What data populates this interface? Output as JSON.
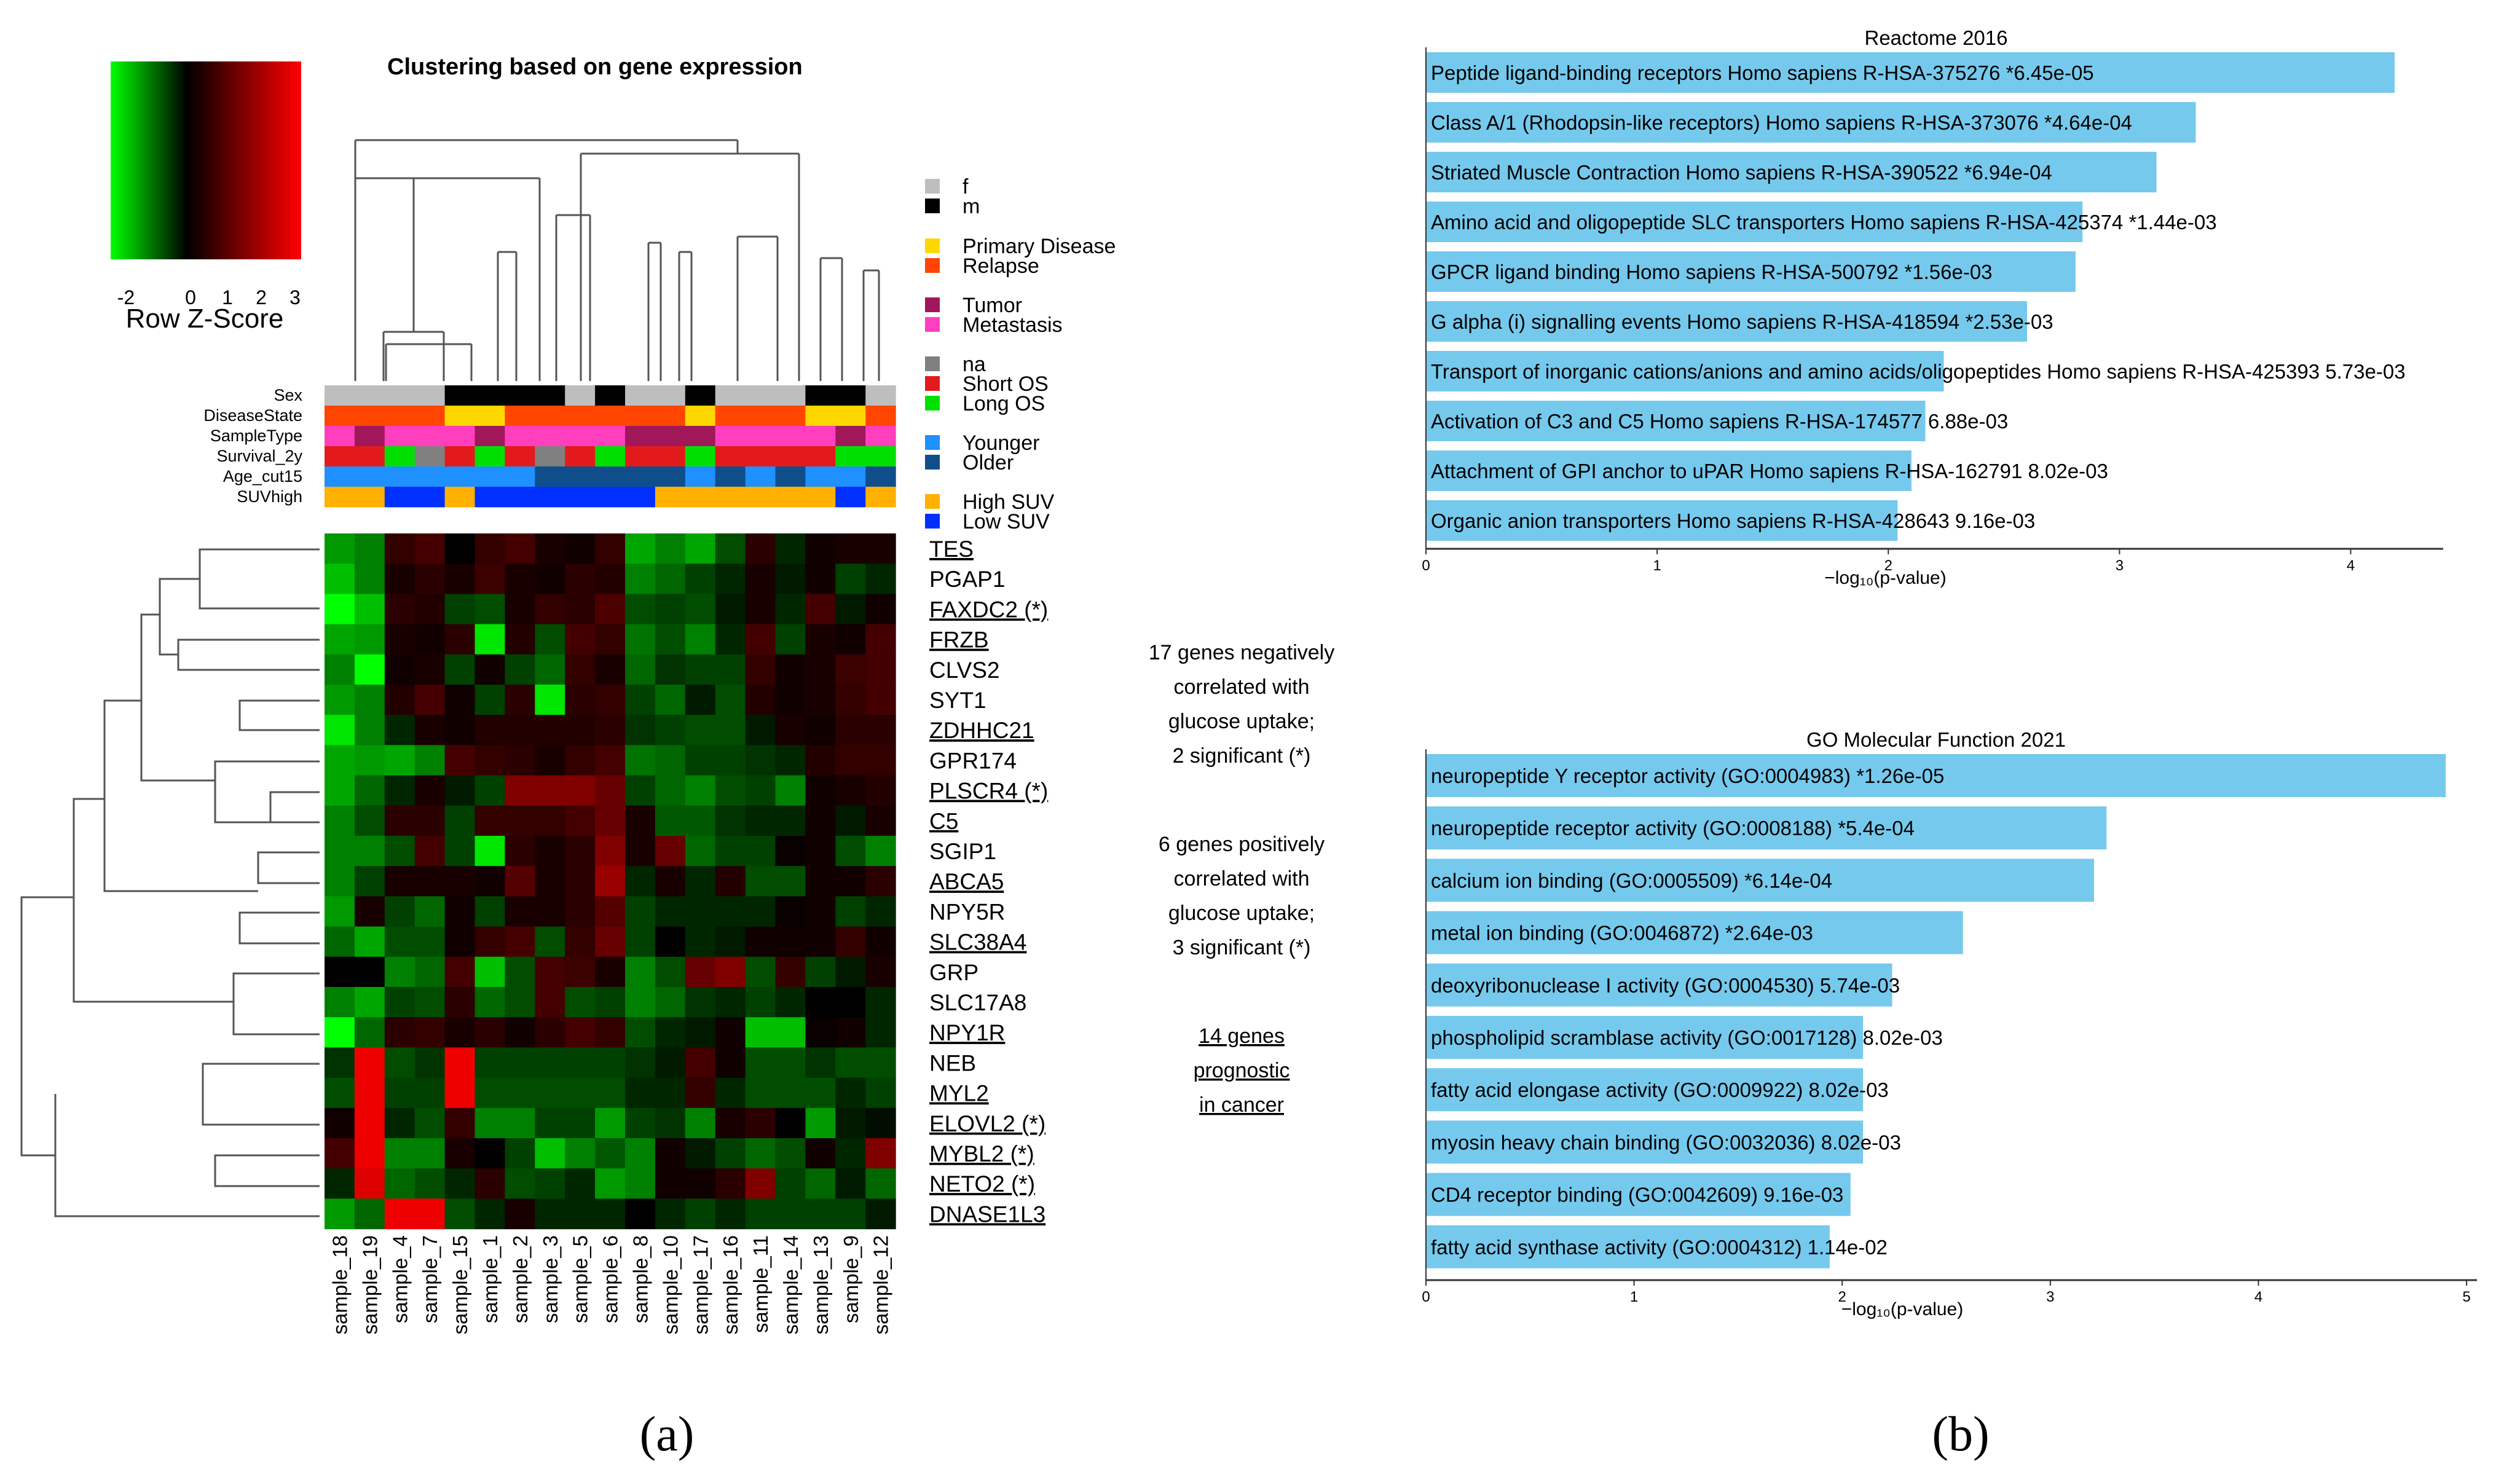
{
  "panel_labels": [
    "(a)",
    "(b)"
  ],
  "colors": {
    "heat_low": "#00ff00",
    "heat_mid": "#000000",
    "heat_high": "#ff0000",
    "sex_f": "#bebebe",
    "sex_m": "#000000",
    "primary": "#ffd700",
    "relapse": "#ff4500",
    "tumor": "#a0175a",
    "metastasis": "#ff3fbe",
    "na": "#808080",
    "short_os": "#e31a1c",
    "long_os": "#00e000",
    "younger": "#1e90ff",
    "older": "#104e8b",
    "high_suv": "#ffb000",
    "low_suv": "#0030ff",
    "neg_text": "#00b050",
    "pos_text": "#ff1010",
    "bar": "#75c9ed",
    "dend": "#555555"
  },
  "heatmap": {
    "title": "Clustering based on gene expression",
    "key_title": "Row Z-Score",
    "key_ticks": [
      "-2",
      "0",
      "1",
      "2",
      "3"
    ],
    "samples": [
      "sample_18",
      "sample_19",
      "sample_4",
      "sample_7",
      "sample_15",
      "sample_1",
      "sample_2",
      "sample_3",
      "sample_5",
      "sample_6",
      "sample_8",
      "sample_10",
      "sample_17",
      "sample_16",
      "sample_11",
      "sample_14",
      "sample_13",
      "sample_9",
      "sample_12"
    ],
    "track_names": [
      "Sex",
      "DiseaseState",
      "SampleType",
      "Survival_2y",
      "Age_cut15",
      "SUVhigh"
    ],
    "tracks": [
      [
        "sex_f",
        "sex_f",
        "sex_f",
        "sex_f",
        "sex_m",
        "sex_m",
        "sex_m",
        "sex_m",
        "sex_f",
        "sex_m",
        "sex_f",
        "sex_f",
        "sex_m",
        "sex_f",
        "sex_f",
        "sex_f",
        "sex_m",
        "sex_m",
        "sex_f"
      ],
      [
        "relapse",
        "relapse",
        "relapse",
        "relapse",
        "primary",
        "primary",
        "relapse",
        "relapse",
        "relapse",
        "relapse",
        "relapse",
        "relapse",
        "primary",
        "relapse",
        "relapse",
        "relapse",
        "primary",
        "primary",
        "relapse"
      ],
      [
        "metastasis",
        "tumor",
        "metastasis",
        "metastasis",
        "metastasis",
        "tumor",
        "metastasis",
        "metastasis",
        "metastasis",
        "metastasis",
        "tumor",
        "tumor",
        "tumor",
        "metastasis",
        "metastasis",
        "metastasis",
        "metastasis",
        "tumor",
        "metastasis"
      ],
      [
        "short_os",
        "short_os",
        "long_os",
        "na",
        "short_os",
        "long_os",
        "short_os",
        "na",
        "short_os",
        "long_os",
        "short_os",
        "short_os",
        "long_os",
        "short_os",
        "short_os",
        "short_os",
        "short_os",
        "long_os",
        "long_os"
      ],
      [
        "younger",
        "younger",
        "younger",
        "younger",
        "younger",
        "younger",
        "younger",
        "older",
        "older",
        "older",
        "older",
        "older",
        "younger",
        "older",
        "younger",
        "older",
        "younger",
        "younger",
        "older"
      ],
      [
        "high_suv",
        "high_suv",
        "low_suv",
        "low_suv",
        "high_suv",
        "low_suv",
        "low_suv",
        "low_suv",
        "low_suv",
        "low_suv",
        "low_suv",
        "high_suv",
        "high_suv",
        "high_suv",
        "high_suv",
        "high_suv",
        "high_suv",
        "low_suv",
        "high_suv"
      ]
    ],
    "legend": [
      {
        "color": "sex_f",
        "label": "f"
      },
      {
        "color": "sex_m",
        "label": "m"
      },
      {
        "color": "primary",
        "label": "Primary Disease"
      },
      {
        "color": "relapse",
        "label": "Relapse"
      },
      {
        "color": "tumor",
        "label": "Tumor"
      },
      {
        "color": "metastasis",
        "label": "Metastasis"
      },
      {
        "color": "na",
        "label": "na"
      },
      {
        "color": "short_os",
        "label": "Short OS"
      },
      {
        "color": "long_os",
        "label": "Long OS"
      },
      {
        "color": "younger",
        "label": "Younger"
      },
      {
        "color": "older",
        "label": "Older"
      },
      {
        "color": "high_suv",
        "label": "High SUV"
      },
      {
        "color": "low_suv",
        "label": "Low SUV"
      }
    ],
    "genes": [
      {
        "name": "TES",
        "sign": "neg",
        "underline": true
      },
      {
        "name": "PGAP1",
        "sign": "neg",
        "underline": false
      },
      {
        "name": "FAXDC2 (*)",
        "sign": "neg",
        "underline": true
      },
      {
        "name": "FRZB",
        "sign": "neg",
        "underline": true
      },
      {
        "name": "CLVS2",
        "sign": "neg",
        "underline": false
      },
      {
        "name": "SYT1",
        "sign": "neg",
        "underline": false
      },
      {
        "name": "ZDHHC21",
        "sign": "neg",
        "underline": true
      },
      {
        "name": "GPR174",
        "sign": "neg",
        "underline": false
      },
      {
        "name": "PLSCR4 (*)",
        "sign": "neg",
        "underline": true
      },
      {
        "name": "C5",
        "sign": "neg",
        "underline": true
      },
      {
        "name": "SGIP1",
        "sign": "neg",
        "underline": false
      },
      {
        "name": "ABCA5",
        "sign": "neg",
        "underline": true
      },
      {
        "name": "NPY5R",
        "sign": "neg",
        "underline": false
      },
      {
        "name": "SLC38A4",
        "sign": "neg",
        "underline": true
      },
      {
        "name": "GRP",
        "sign": "pos",
        "underline": false
      },
      {
        "name": "SLC17A8",
        "sign": "neg",
        "underline": false
      },
      {
        "name": "NPY1R",
        "sign": "neg",
        "underline": true
      },
      {
        "name": "NEB",
        "sign": "pos",
        "underline": false
      },
      {
        "name": "MYL2",
        "sign": "pos",
        "underline": true
      },
      {
        "name": "ELOVL2 (*)",
        "sign": "pos",
        "underline": true
      },
      {
        "name": "MYBL2 (*)",
        "sign": "pos",
        "underline": true
      },
      {
        "name": "NETO2 (*)",
        "sign": "pos",
        "underline": true
      },
      {
        "name": "DNASE1L3",
        "sign": "neg",
        "underline": true
      }
    ],
    "annotation_neg": [
      "17 genes negatively",
      "correlated with",
      "glucose uptake;",
      "2 significant (*)"
    ],
    "annotation_pos": [
      "6 genes positively",
      "correlated with",
      "glucose uptake;",
      "3 significant (*)"
    ],
    "annotation_prog": [
      "14 genes",
      "prognostic",
      "in cancer"
    ]
  },
  "chart_data": [
    {
      "type": "heatmap",
      "title": "Clustering based on gene expression",
      "legend_title": "Row Z-Score",
      "value_range": [
        -2,
        3
      ],
      "columns": [
        "sample_18",
        "sample_19",
        "sample_4",
        "sample_7",
        "sample_15",
        "sample_1",
        "sample_2",
        "sample_3",
        "sample_5",
        "sample_6",
        "sample_8",
        "sample_10",
        "sample_17",
        "sample_16",
        "sample_11",
        "sample_14",
        "sample_13",
        "sample_9",
        "sample_12"
      ],
      "rows": [
        "TES",
        "PGAP1",
        "FAXDC2",
        "FRZB",
        "CLVS2",
        "SYT1",
        "ZDHHC21",
        "GPR174",
        "PLSCR4",
        "C5",
        "SGIP1",
        "ABCA5",
        "NPY5R",
        "SLC38A4",
        "GRP",
        "SLC17A8",
        "NPY1R",
        "NEB",
        "MYL2",
        "ELOVL2",
        "MYBL2",
        "NETO2",
        "DNASE1L3"
      ],
      "values": [
        [
          -1.2,
          -1.0,
          0.6,
          0.8,
          0.0,
          0.6,
          0.8,
          0.3,
          0.2,
          0.6,
          -1.3,
          -1.0,
          -1.3,
          -0.6,
          0.5,
          -0.3,
          0.2,
          0.3,
          0.3
        ],
        [
          -1.5,
          -1.0,
          0.3,
          0.5,
          0.3,
          0.7,
          0.3,
          0.2,
          0.5,
          0.4,
          -1.0,
          -0.8,
          -0.5,
          -0.3,
          0.3,
          -0.2,
          0.2,
          -0.5,
          -0.3
        ],
        [
          -2.0,
          -1.5,
          0.5,
          0.4,
          -0.5,
          -0.6,
          0.3,
          0.6,
          0.5,
          0.9,
          -0.6,
          -0.5,
          -0.6,
          -0.2,
          0.3,
          -0.3,
          0.8,
          -0.2,
          0.2
        ],
        [
          -1.3,
          -1.2,
          0.3,
          0.2,
          0.5,
          -1.8,
          0.4,
          -0.6,
          0.8,
          0.6,
          -0.9,
          -0.6,
          -1.0,
          -0.3,
          0.8,
          -0.5,
          0.3,
          0.2,
          0.8
        ],
        [
          -1.0,
          -2.2,
          0.2,
          0.3,
          -0.5,
          0.2,
          -0.5,
          -0.8,
          0.6,
          0.3,
          -0.8,
          -0.4,
          -0.5,
          -0.5,
          0.6,
          0.2,
          0.3,
          0.7,
          0.8
        ],
        [
          -1.2,
          -1.0,
          0.4,
          0.8,
          0.2,
          -0.5,
          0.5,
          -1.8,
          0.5,
          0.6,
          -0.5,
          -0.8,
          -0.2,
          -0.6,
          0.4,
          0.2,
          0.3,
          0.6,
          0.8
        ],
        [
          -1.8,
          -1.0,
          -0.3,
          0.3,
          0.2,
          0.4,
          0.4,
          0.4,
          0.4,
          0.5,
          -0.4,
          -0.5,
          -0.6,
          -0.6,
          -0.2,
          0.3,
          0.2,
          0.5,
          0.5
        ],
        [
          -1.3,
          -1.2,
          -1.3,
          -1.0,
          0.8,
          0.6,
          0.5,
          0.3,
          0.6,
          0.8,
          -0.9,
          -0.8,
          -0.5,
          -0.5,
          -0.4,
          -0.3,
          0.4,
          0.6,
          0.6
        ],
        [
          -1.3,
          -0.8,
          -0.3,
          0.3,
          -0.2,
          -0.5,
          1.5,
          1.5,
          1.5,
          1.2,
          -0.5,
          -0.8,
          -1.0,
          -0.6,
          -0.5,
          -1.0,
          0.2,
          0.3,
          0.4
        ],
        [
          -1.0,
          -0.6,
          0.5,
          0.5,
          -0.5,
          0.6,
          0.6,
          0.6,
          0.8,
          1.2,
          0.3,
          -0.7,
          -0.7,
          -0.4,
          -0.3,
          -0.3,
          0.2,
          -0.2,
          0.3
        ],
        [
          -1.0,
          -1.0,
          -0.6,
          0.8,
          -0.5,
          -1.8,
          0.5,
          0.3,
          0.5,
          1.5,
          0.3,
          1.2,
          -0.8,
          -0.5,
          -0.5,
          0.1,
          0.2,
          -0.6,
          -1.0
        ],
        [
          -1.0,
          -0.5,
          0.3,
          0.3,
          0.3,
          0.2,
          1.0,
          0.3,
          0.5,
          1.8,
          -0.3,
          0.3,
          -0.3,
          0.4,
          -0.6,
          -0.6,
          0.2,
          0.2,
          0.5
        ],
        [
          -1.2,
          0.3,
          -0.5,
          -0.8,
          0.2,
          -0.5,
          0.3,
          0.3,
          0.5,
          1.0,
          -0.5,
          -0.3,
          -0.3,
          -0.3,
          -0.3,
          0.1,
          0.2,
          -0.5,
          -0.3
        ],
        [
          -0.8,
          -1.3,
          -0.6,
          -0.6,
          0.2,
          0.6,
          0.8,
          -0.6,
          0.6,
          1.2,
          -0.5,
          0.0,
          -0.3,
          -0.2,
          0.2,
          0.2,
          0.2,
          0.6,
          0.2
        ],
        [
          0.0,
          0.0,
          -1.0,
          -0.8,
          0.8,
          -1.5,
          -0.6,
          0.8,
          0.7,
          0.3,
          -1.0,
          -0.6,
          1.2,
          1.5,
          -0.6,
          0.6,
          -0.5,
          -0.2,
          0.3
        ],
        [
          -1.0,
          -1.3,
          -0.5,
          -0.6,
          0.5,
          -0.8,
          -0.6,
          0.8,
          -0.6,
          -0.5,
          -1.0,
          -0.8,
          -0.4,
          -0.3,
          -0.5,
          -0.3,
          0.0,
          0.0,
          -0.3
        ],
        [
          -2.0,
          -0.8,
          0.5,
          0.6,
          0.3,
          0.5,
          0.2,
          0.5,
          0.8,
          0.6,
          -0.6,
          -0.3,
          -0.2,
          0.2,
          -1.5,
          -1.5,
          0.1,
          0.2,
          -0.3
        ],
        [
          -0.4,
          2.8,
          -0.6,
          -0.4,
          2.8,
          -0.5,
          -0.5,
          -0.5,
          -0.5,
          -0.5,
          -0.4,
          -0.2,
          0.8,
          0.2,
          -0.6,
          -0.6,
          -0.4,
          -0.6,
          -0.6
        ],
        [
          -0.6,
          2.8,
          -0.5,
          -0.5,
          2.8,
          -0.6,
          -0.6,
          -0.6,
          -0.6,
          -0.6,
          -0.3,
          -0.3,
          0.6,
          -0.3,
          -0.6,
          -0.6,
          -0.6,
          -0.3,
          -0.5
        ],
        [
          0.2,
          2.8,
          -0.3,
          -0.6,
          0.6,
          -1.0,
          -1.0,
          -0.5,
          -0.5,
          -1.2,
          -0.5,
          -0.4,
          -1.0,
          0.3,
          0.5,
          0.0,
          -1.2,
          -0.2,
          -0.1
        ],
        [
          0.8,
          2.8,
          -1.0,
          -1.0,
          0.3,
          0.0,
          -0.5,
          -1.5,
          -1.0,
          -0.7,
          -1.0,
          0.2,
          -0.2,
          -0.5,
          -0.8,
          -0.6,
          0.2,
          -0.3,
          1.5
        ],
        [
          -0.3,
          2.6,
          -0.8,
          -0.6,
          -0.3,
          0.5,
          -0.6,
          -0.5,
          -0.3,
          -1.2,
          -1.0,
          0.2,
          0.2,
          0.5,
          1.5,
          -0.5,
          -0.8,
          -0.2,
          -0.8
        ],
        [
          -1.2,
          -0.8,
          2.8,
          2.8,
          -0.6,
          -0.3,
          0.3,
          -0.3,
          -0.3,
          -0.3,
          0.0,
          -0.3,
          -0.5,
          -0.3,
          -0.5,
          -0.5,
          -0.5,
          -0.5,
          -0.2
        ]
      ]
    },
    {
      "type": "bar",
      "orientation": "horizontal",
      "title": "Reactome 2016",
      "xlabel": "−log₁₀(p-value)",
      "xlim": [
        0,
        4.4
      ],
      "xticks": [
        0,
        1,
        2,
        3,
        4
      ],
      "categories": [
        "Peptide ligand-binding receptors Homo sapiens R-HSA-375276  *6.45e-05",
        "Class A/1 (Rhodopsin-like receptors) Homo sapiens R-HSA-373076  *4.64e-04",
        "Striated Muscle Contraction Homo sapiens R-HSA-390522  *6.94e-04",
        "Amino acid and oligopeptide SLC transporters Homo sapiens R-HSA-425374  *1.44e-03",
        "GPCR ligand binding Homo sapiens R-HSA-500792  *1.56e-03",
        "G alpha (i) signalling events Homo sapiens R-HSA-418594  *2.53e-03",
        "Transport of inorganic cations/anions and amino acids/oligopeptides Homo sapiens R-HSA-425393  5.73e-03",
        "Activation of C3 and C5 Homo sapiens R-HSA-174577  6.88e-03",
        "Attachment of GPI anchor to uPAR Homo sapiens R-HSA-162791  8.02e-03",
        "Organic anion transporters Homo sapiens R-HSA-428643  9.16e-03"
      ],
      "values": [
        4.19,
        3.33,
        3.16,
        2.84,
        2.81,
        2.6,
        2.24,
        2.16,
        2.1,
        2.04
      ]
    },
    {
      "type": "bar",
      "orientation": "horizontal",
      "title": "GO Molecular Function 2021",
      "xlabel": "−log₁₀(p-value)",
      "xlim": [
        0,
        5.05
      ],
      "xticks": [
        0,
        1,
        2,
        3,
        4,
        5
      ],
      "categories": [
        "neuropeptide Y receptor activity (GO:0004983)  *1.26e-05",
        "neuropeptide receptor activity (GO:0008188)  *5.4e-04",
        "calcium ion binding (GO:0005509)  *6.14e-04",
        "metal ion binding (GO:0046872)  *2.64e-03",
        "deoxyribonuclease I activity (GO:0004530)  5.74e-03",
        "phospholipid scramblase activity (GO:0017128)  8.02e-03",
        "fatty acid elongase activity (GO:0009922)  8.02e-03",
        "myosin heavy chain binding (GO:0032036)  8.02e-03",
        "CD4 receptor binding (GO:0042609)  9.16e-03",
        "fatty acid synthase activity (GO:0004312)  1.14e-02"
      ],
      "values": [
        4.9,
        3.27,
        3.21,
        2.58,
        2.24,
        2.1,
        2.1,
        2.1,
        2.04,
        1.94
      ]
    }
  ]
}
